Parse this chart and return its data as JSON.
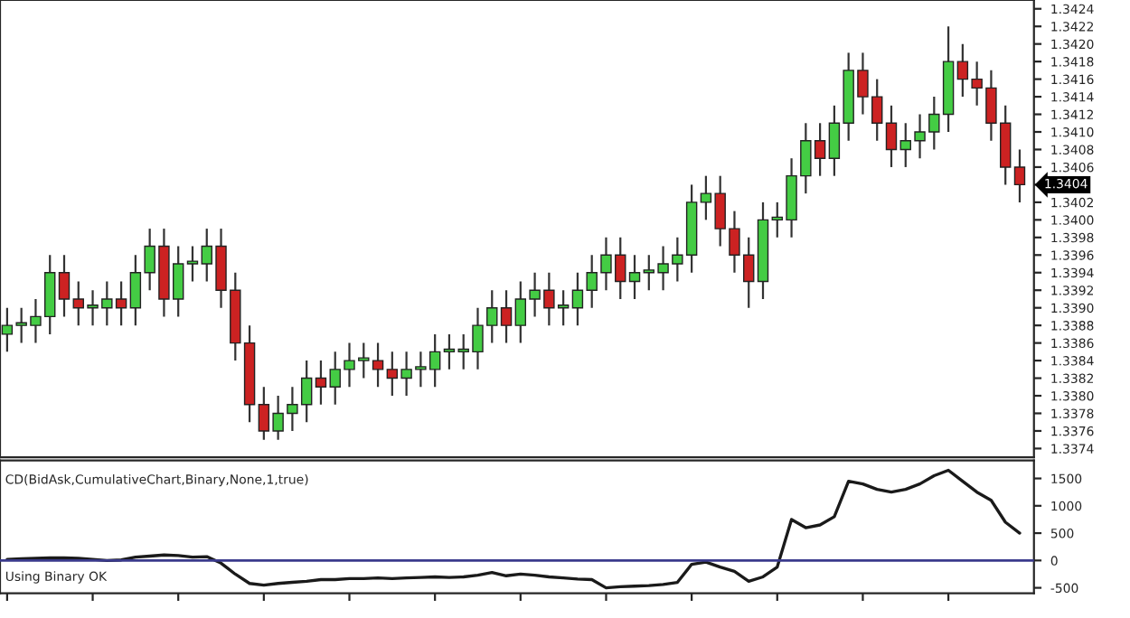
{
  "chart_data": [
    {
      "type": "candlestick",
      "categories": [
        null,
        null,
        null,
        null,
        null,
        null,
        null,
        null,
        null,
        null,
        null,
        null,
        null,
        null,
        null,
        null,
        null,
        null,
        null,
        null,
        null,
        null,
        null,
        null,
        null,
        null,
        null,
        null,
        null,
        null,
        null,
        null,
        null,
        null,
        null,
        null,
        null,
        null,
        null,
        null,
        null,
        null,
        null,
        null,
        null,
        null,
        null,
        null,
        null,
        null,
        null,
        null,
        null,
        null,
        null,
        null,
        null,
        null,
        null,
        null,
        null,
        null,
        null,
        null,
        null,
        null,
        null,
        null,
        null,
        null,
        null,
        null
      ],
      "ohlc": [
        [
          1.3387,
          1.339,
          1.3385,
          1.3388
        ],
        [
          1.3388,
          1.339,
          1.3386,
          1.3388
        ],
        [
          1.3388,
          1.3391,
          1.3386,
          1.3389
        ],
        [
          1.3389,
          1.3396,
          1.3387,
          1.3394
        ],
        [
          1.3394,
          1.3396,
          1.3389,
          1.3391
        ],
        [
          1.3391,
          1.3393,
          1.3388,
          1.339
        ],
        [
          1.339,
          1.3392,
          1.3388,
          1.339
        ],
        [
          1.339,
          1.3393,
          1.3388,
          1.3391
        ],
        [
          1.3391,
          1.3393,
          1.3388,
          1.339
        ],
        [
          1.339,
          1.3396,
          1.3388,
          1.3394
        ],
        [
          1.3394,
          1.3399,
          1.3392,
          1.3397
        ],
        [
          1.3397,
          1.3399,
          1.3389,
          1.3391
        ],
        [
          1.3391,
          1.3397,
          1.3389,
          1.3395
        ],
        [
          1.3395,
          1.3397,
          1.3393,
          1.3395
        ],
        [
          1.3395,
          1.3399,
          1.3393,
          1.3397
        ],
        [
          1.3397,
          1.3399,
          1.339,
          1.3392
        ],
        [
          1.3392,
          1.3394,
          1.3384,
          1.3386
        ],
        [
          1.3386,
          1.3388,
          1.3377,
          1.3379
        ],
        [
          1.3379,
          1.3381,
          1.3375,
          1.3376
        ],
        [
          1.3376,
          1.338,
          1.3375,
          1.3378
        ],
        [
          1.3378,
          1.3381,
          1.3376,
          1.3379
        ],
        [
          1.3379,
          1.3384,
          1.3377,
          1.3382
        ],
        [
          1.3382,
          1.3384,
          1.3379,
          1.3381
        ],
        [
          1.3381,
          1.3385,
          1.3379,
          1.3383
        ],
        [
          1.3383,
          1.3386,
          1.3381,
          1.3384
        ],
        [
          1.3384,
          1.3386,
          1.3382,
          1.3384
        ],
        [
          1.3384,
          1.3386,
          1.3381,
          1.3383
        ],
        [
          1.3383,
          1.3385,
          1.338,
          1.3382
        ],
        [
          1.3382,
          1.3385,
          1.338,
          1.3383
        ],
        [
          1.3383,
          1.3385,
          1.3381,
          1.3383
        ],
        [
          1.3383,
          1.3387,
          1.3381,
          1.3385
        ],
        [
          1.3385,
          1.3387,
          1.3383,
          1.3385
        ],
        [
          1.3385,
          1.3387,
          1.3383,
          1.3385
        ],
        [
          1.3385,
          1.339,
          1.3383,
          1.3388
        ],
        [
          1.3388,
          1.3392,
          1.3386,
          1.339
        ],
        [
          1.339,
          1.3392,
          1.3386,
          1.3388
        ],
        [
          1.3388,
          1.3393,
          1.3386,
          1.3391
        ],
        [
          1.3391,
          1.3394,
          1.3389,
          1.3392
        ],
        [
          1.3392,
          1.3394,
          1.3388,
          1.339
        ],
        [
          1.339,
          1.3392,
          1.3388,
          1.339
        ],
        [
          1.339,
          1.3394,
          1.3388,
          1.3392
        ],
        [
          1.3392,
          1.3396,
          1.339,
          1.3394
        ],
        [
          1.3394,
          1.3398,
          1.3392,
          1.3396
        ],
        [
          1.3396,
          1.3398,
          1.3391,
          1.3393
        ],
        [
          1.3393,
          1.3396,
          1.3391,
          1.3394
        ],
        [
          1.3394,
          1.3396,
          1.3392,
          1.3394
        ],
        [
          1.3394,
          1.3397,
          1.3392,
          1.3395
        ],
        [
          1.3395,
          1.3398,
          1.3393,
          1.3396
        ],
        [
          1.3396,
          1.3404,
          1.3394,
          1.3402
        ],
        [
          1.3402,
          1.3405,
          1.34,
          1.3403
        ],
        [
          1.3403,
          1.3405,
          1.3397,
          1.3399
        ],
        [
          1.3399,
          1.3401,
          1.3394,
          1.3396
        ],
        [
          1.3396,
          1.3398,
          1.339,
          1.3393
        ],
        [
          1.3393,
          1.3402,
          1.3391,
          1.34
        ],
        [
          1.34,
          1.3402,
          1.3398,
          1.34
        ],
        [
          1.34,
          1.3407,
          1.3398,
          1.3405
        ],
        [
          1.3405,
          1.3411,
          1.3403,
          1.3409
        ],
        [
          1.3409,
          1.3411,
          1.3405,
          1.3407
        ],
        [
          1.3407,
          1.3413,
          1.3405,
          1.3411
        ],
        [
          1.3411,
          1.3419,
          1.3409,
          1.3417
        ],
        [
          1.3417,
          1.3419,
          1.3412,
          1.3414
        ],
        [
          1.3414,
          1.3416,
          1.3409,
          1.3411
        ],
        [
          1.3411,
          1.3413,
          1.3406,
          1.3408
        ],
        [
          1.3408,
          1.3411,
          1.3406,
          1.3409
        ],
        [
          1.3409,
          1.3412,
          1.3407,
          1.341
        ],
        [
          1.341,
          1.3414,
          1.3408,
          1.3412
        ],
        [
          1.3412,
          1.3422,
          1.341,
          1.3418
        ],
        [
          1.3418,
          1.342,
          1.3414,
          1.3416
        ],
        [
          1.3416,
          1.3418,
          1.3413,
          1.3415
        ],
        [
          1.3415,
          1.3417,
          1.3409,
          1.3411
        ],
        [
          1.3411,
          1.3413,
          1.3404,
          1.3406
        ],
        [
          1.3406,
          1.3408,
          1.3402,
          1.3404
        ]
      ],
      "colors": [
        "#44cc44",
        "#44cc44",
        "#44cc44",
        "#44cc44",
        "#cc2222",
        "#cc2222",
        "#44cc44",
        "#44cc44",
        "#cc2222",
        "#44cc44",
        "#44cc44",
        "#cc2222",
        "#44cc44",
        "#44cc44",
        "#44cc44",
        "#cc2222",
        "#cc2222",
        "#cc2222",
        "#cc2222",
        "#44cc44",
        "#44cc44",
        "#44cc44",
        "#cc2222",
        "#44cc44",
        "#44cc44",
        "#44cc44",
        "#cc2222",
        "#cc2222",
        "#44cc44",
        "#44cc44",
        "#44cc44",
        "#44cc44",
        "#44cc44",
        "#44cc44",
        "#44cc44",
        "#cc2222",
        "#44cc44",
        "#44cc44",
        "#cc2222",
        "#44cc44",
        "#44cc44",
        "#44cc44",
        "#44cc44",
        "#cc2222",
        "#44cc44",
        "#44cc44",
        "#44cc44",
        "#44cc44",
        "#44cc44",
        "#44cc44",
        "#cc2222",
        "#cc2222",
        "#cc2222",
        "#44cc44",
        "#44cc44",
        "#44cc44",
        "#44cc44",
        "#cc2222",
        "#44cc44",
        "#44cc44",
        "#cc2222",
        "#cc2222",
        "#cc2222",
        "#44cc44",
        "#44cc44",
        "#44cc44",
        "#44cc44",
        "#cc2222",
        "#cc2222",
        "#cc2222",
        "#cc2222",
        "#cc2222"
      ],
      "ylim": [
        1.3373,
        1.3425
      ],
      "yticks": [
        {
          "value": 1.3374,
          "label": "1.3374"
        },
        {
          "value": 1.3376,
          "label": "1.3376"
        },
        {
          "value": 1.3378,
          "label": "1.3378"
        },
        {
          "value": 1.338,
          "label": "1.3380"
        },
        {
          "value": 1.3382,
          "label": "1.3382"
        },
        {
          "value": 1.3384,
          "label": "1.3384"
        },
        {
          "value": 1.3386,
          "label": "1.3386"
        },
        {
          "value": 1.3388,
          "label": "1.3388"
        },
        {
          "value": 1.339,
          "label": "1.3390"
        },
        {
          "value": 1.3392,
          "label": "1.3392"
        },
        {
          "value": 1.3394,
          "label": "1.3394"
        },
        {
          "value": 1.3396,
          "label": "1.3396"
        },
        {
          "value": 1.3398,
          "label": "1.3398"
        },
        {
          "value": 1.34,
          "label": "1.3400"
        },
        {
          "value": 1.3402,
          "label": "1.3402"
        },
        {
          "value": 1.3404,
          "label": null
        },
        {
          "value": 1.3406,
          "label": "1.3406"
        },
        {
          "value": 1.3408,
          "label": "1.3408"
        },
        {
          "value": 1.341,
          "label": "1.3410"
        },
        {
          "value": 1.3412,
          "label": "1.3412"
        },
        {
          "value": 1.3414,
          "label": "1.3414"
        },
        {
          "value": 1.3416,
          "label": "1.3416"
        },
        {
          "value": 1.3418,
          "label": "1.3418"
        },
        {
          "value": 1.342,
          "label": "1.3420"
        },
        {
          "value": 1.3422,
          "label": "1.3422"
        },
        {
          "value": 1.3424,
          "label": "1.3424"
        }
      ],
      "annotations": [
        "1.3404"
      ],
      "tick_labels": "y",
      "grid": false,
      "legend": false
    },
    {
      "type": "line",
      "categories": [
        null,
        null,
        null,
        null,
        null,
        null,
        null,
        null,
        null,
        null,
        null,
        null,
        null,
        null,
        null,
        null,
        null,
        null,
        null,
        null,
        null,
        null,
        null,
        null,
        null,
        null,
        null,
        null,
        null,
        null,
        null,
        null,
        null,
        null,
        null,
        null,
        null,
        null,
        null,
        null,
        null,
        null,
        null,
        null,
        null,
        null,
        null,
        null,
        null,
        null,
        null,
        null,
        null,
        null,
        null,
        null,
        null,
        null,
        null,
        null,
        null,
        null,
        null,
        null,
        null,
        null,
        null,
        null,
        null,
        null,
        null,
        null
      ],
      "series": [
        {
          "color": "#1a1a1a",
          "values": [
            20,
            30,
            40,
            50,
            50,
            40,
            20,
            0,
            10,
            60,
            80,
            100,
            90,
            60,
            70,
            -50,
            -250,
            -420,
            -450,
            -420,
            -400,
            -380,
            -350,
            -350,
            -330,
            -330,
            -320,
            -330,
            -320,
            -310,
            -300,
            -310,
            -300,
            -270,
            -220,
            -280,
            -250,
            -270,
            -300,
            -320,
            -340,
            -350,
            -500,
            -480,
            -470,
            -460,
            -440,
            -400,
            -70,
            -30,
            -120,
            -200,
            -380,
            -300,
            -120,
            750,
            600,
            650,
            800,
            1450,
            1400,
            1300,
            1250,
            1300,
            1400,
            1550,
            1650,
            1450,
            1250,
            1100,
            700,
            500
          ]
        }
      ],
      "ylim": [
        -600,
        1830
      ],
      "yticks": [
        -500,
        0,
        500,
        1000,
        1500
      ],
      "ref_lines": [
        {
          "axis": "y",
          "value": 0,
          "color": "#3a3a8c"
        }
      ],
      "annotations": [
        "CD(BidAsk,CumulativeChart,Binary,None,1,true)",
        "Using Binary OK"
      ],
      "tick_labels": "y",
      "grid": false,
      "legend": false
    }
  ]
}
